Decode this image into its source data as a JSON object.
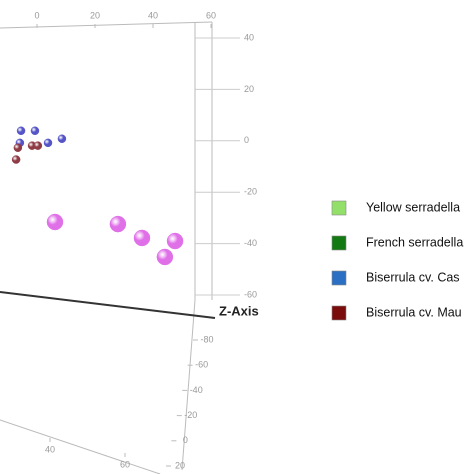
{
  "chart_data": {
    "type": "scatter3d",
    "axis_label": "Z-Axis",
    "xlim": [
      0,
      60
    ],
    "xticks": [
      0,
      20,
      40,
      60
    ],
    "ylim": [
      -60,
      40
    ],
    "yticks": [
      40,
      20,
      0,
      -20,
      -40,
      -60
    ],
    "zlim": [
      -80,
      20
    ],
    "zticks": [
      -80,
      -60,
      -40,
      -20,
      0,
      20
    ],
    "x_front_ticks": [
      40,
      60
    ],
    "series": [
      {
        "color": "#e070e8",
        "size": 8,
        "x": [
          6.2,
          27.9,
          36.2,
          47.6,
          44.1
        ],
        "y": [
          -31.6,
          -32.4,
          -37.8,
          -39,
          -45.2
        ]
      },
      {
        "color": "#5555c8",
        "size": 4,
        "x": [
          -5.5,
          -0.7,
          3.8,
          8.6,
          -5.9
        ],
        "y": [
          3.9,
          3.9,
          -0.8,
          0.8,
          -0.8
        ]
      },
      {
        "color": "#8e3b45",
        "size": 4,
        "x": [
          -6.6,
          -1.7,
          0.3,
          -7.2
        ],
        "y": [
          -2.7,
          -1.9,
          -1.9,
          -7.3
        ]
      }
    ],
    "legend": [
      {
        "label": "Yellow serradella",
        "color": "#92e06a"
      },
      {
        "label": "French serradella",
        "color": "#137a13"
      },
      {
        "label": "Biserrula cv. Cas",
        "color": "#2a6fc4"
      },
      {
        "label": "Biserrula cv. Mau",
        "color": "#7a0c0c"
      }
    ]
  }
}
